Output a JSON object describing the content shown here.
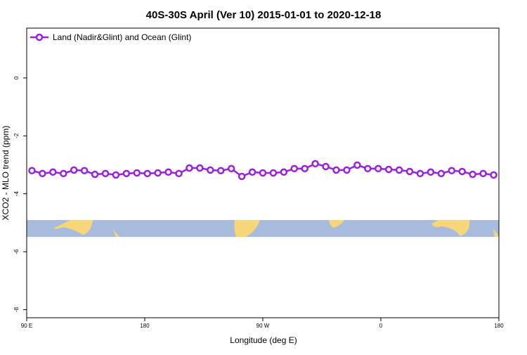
{
  "chart_data": {
    "type": "line",
    "title": "40S-30S April (Ver 10)   2015-01-01 to 2020-12-18",
    "x_label": "Longitude (deg E)",
    "y_label": "XCO2 - MLO trend (ppm)",
    "x": [
      94,
      102,
      110,
      118,
      126,
      134,
      142,
      150,
      158,
      166,
      174,
      182,
      190,
      198,
      206,
      214,
      222,
      230,
      238,
      246,
      254,
      262,
      270,
      278,
      286,
      294,
      302,
      310,
      318,
      326,
      334,
      342,
      350,
      358,
      366,
      374,
      382,
      390,
      398,
      406,
      414,
      422,
      430,
      438,
      446
    ],
    "series": [
      {
        "name": "Land (Nadir&Glint) and Ocean (Glint)",
        "color": "#9a1fe0",
        "values": [
          -3.2,
          -3.3,
          -3.25,
          -3.3,
          -3.18,
          -3.2,
          -3.33,
          -3.3,
          -3.35,
          -3.3,
          -3.28,
          -3.3,
          -3.28,
          -3.25,
          -3.3,
          -3.11,
          -3.11,
          -3.18,
          -3.2,
          -3.13,
          -3.4,
          -3.25,
          -3.28,
          -3.28,
          -3.25,
          -3.13,
          -3.13,
          -2.96,
          -3.06,
          -3.18,
          -3.18,
          -3.01,
          -3.13,
          -3.13,
          -3.16,
          -3.18,
          -3.23,
          -3.3,
          -3.25,
          -3.3,
          -3.2,
          -3.23,
          -3.33,
          -3.3,
          -3.35
        ]
      }
    ],
    "xlim": [
      90,
      450
    ],
    "xticks": [
      {
        "value": 90,
        "label": "90 E"
      },
      180,
      {
        "value": 270,
        "label": "90 W"
      },
      {
        "value": 360,
        "label": "0"
      },
      {
        "value": 450,
        "label": "180"
      }
    ],
    "ylim": [
      -8.28,
      1.72
    ],
    "yticks": [
      0,
      -2,
      -4,
      -6,
      -8
    ],
    "legend": "top-left"
  }
}
